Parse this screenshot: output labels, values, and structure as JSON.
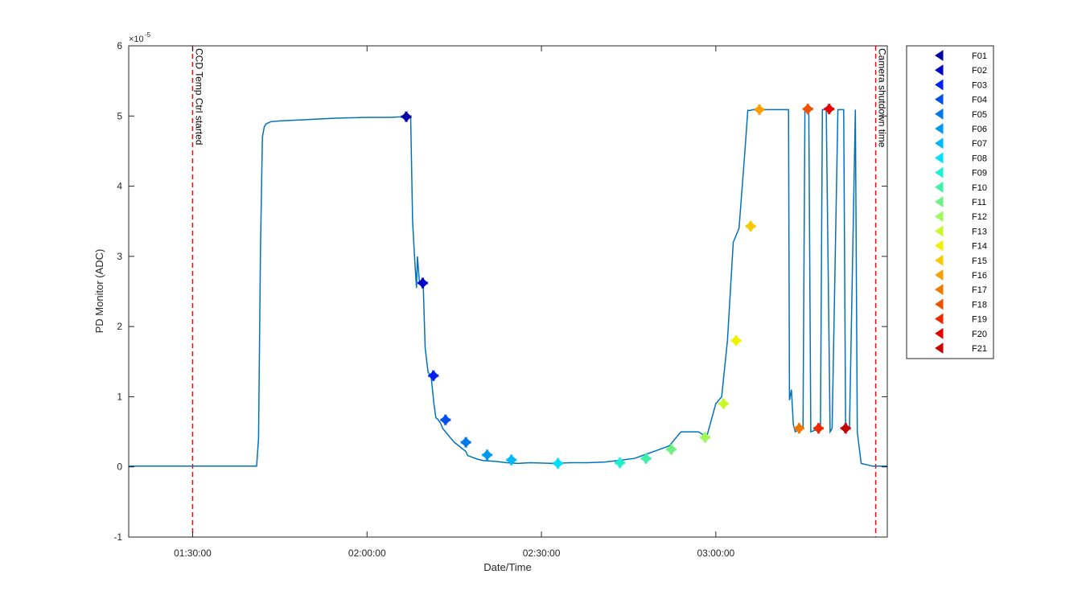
{
  "chart_data": {
    "type": "line",
    "xlabel": "Date/Time",
    "ylabel": "PD Monitor (ADC)",
    "y_exponent_label": "×10",
    "y_exponent_power": "-5",
    "xlim": [
      "01:19:00",
      "03:29:30"
    ],
    "ylim": [
      -1,
      6
    ],
    "x_ticks": [
      "01:30:00",
      "02:00:00",
      "02:30:00",
      "03:00:00"
    ],
    "y_ticks": [
      -1,
      0,
      1,
      2,
      3,
      4,
      5,
      6
    ],
    "grid": false,
    "legend_position": "outside-right",
    "line_color": "#0072bd",
    "series": [
      {
        "x": [
          "01:19:00",
          "01:41:00",
          "01:41:20",
          "01:41:40",
          "01:42:00",
          "01:42:20",
          "01:42:40",
          "01:43:30",
          "01:45:00",
          "01:50:00",
          "01:55:00",
          "02:00:00",
          "02:04:00",
          "02:06:00",
          "02:07:30",
          "02:07:50",
          "02:08:10",
          "02:08:30",
          "02:08:40",
          "02:09:00",
          "02:09:40",
          "02:10:00",
          "02:10:30",
          "02:11:00",
          "02:11:30",
          "02:11:50",
          "02:12:10",
          "02:12:40",
          "02:13:00",
          "02:15:00",
          "02:15:20",
          "02:17:00",
          "02:17:20",
          "02:19:00",
          "02:20:00",
          "02:22:00",
          "02:24:00",
          "02:26:00",
          "02:28:00",
          "02:32:00",
          "02:35:00",
          "02:38:00",
          "02:41:00",
          "02:44:00",
          "02:46:00",
          "02:48:00",
          "02:50:00",
          "02:52:00",
          "02:54:00",
          "02:55:00",
          "02:57:00",
          "02:58:00",
          "02:58:20",
          "02:59:00",
          "03:00:00",
          "03:01:00",
          "03:02:00",
          "03:02:30",
          "03:03:00",
          "03:04:00",
          "03:05:00",
          "03:05:30",
          "03:06:00",
          "03:06:20",
          "03:06:40",
          "03:07:00",
          "03:12:30",
          "03:12:40",
          "03:13:00",
          "03:13:20",
          "03:13:40",
          "03:14:00",
          "03:15:00",
          "03:15:20",
          "03:16:00",
          "03:16:20",
          "03:17:00",
          "03:18:00",
          "03:18:20",
          "03:19:00",
          "03:19:40",
          "03:20:00",
          "03:21:00",
          "03:22:00",
          "03:22:20",
          "03:23:00",
          "03:24:00",
          "03:24:20",
          "03:25:00",
          "03:27:00",
          "03:29:30"
        ],
        "y": [
          0.01,
          0.01,
          0.4,
          3.1,
          4.7,
          4.85,
          4.89,
          4.92,
          4.93,
          4.95,
          4.97,
          4.98,
          4.98,
          4.99,
          4.99,
          3.5,
          3.0,
          2.55,
          3.0,
          2.65,
          2.6,
          1.7,
          1.35,
          1.3,
          0.9,
          0.7,
          0.68,
          0.62,
          0.55,
          0.35,
          0.33,
          0.22,
          0.16,
          0.11,
          0.09,
          0.08,
          0.06,
          0.05,
          0.06,
          0.05,
          0.06,
          0.06,
          0.07,
          0.1,
          0.12,
          0.18,
          0.24,
          0.3,
          0.5,
          0.5,
          0.5,
          0.45,
          0.4,
          0.6,
          0.9,
          1.0,
          1.8,
          2.5,
          3.2,
          3.4,
          4.5,
          5.08,
          5.08,
          5.09,
          5.09,
          5.09,
          5.09,
          0.95,
          1.1,
          0.6,
          0.5,
          0.52,
          0.55,
          5.09,
          5.09,
          0.5,
          0.52,
          0.55,
          5.09,
          5.09,
          0.5,
          0.55,
          5.09,
          5.09,
          0.5,
          0.55,
          5.09,
          0.5,
          0.05,
          0.01,
          0.01
        ]
      }
    ],
    "markers": [
      {
        "name": "F01",
        "x": "02:06:45",
        "y": 4.99,
        "color": "#0000aa"
      },
      {
        "name": "F02",
        "x": "02:09:35",
        "y": 2.62,
        "color": "#0000c8"
      },
      {
        "name": "F03",
        "x": "02:11:25",
        "y": 1.3,
        "color": "#0020f0"
      },
      {
        "name": "F04",
        "x": "02:13:30",
        "y": 0.67,
        "color": "#0050e8"
      },
      {
        "name": "F05",
        "x": "02:17:00",
        "y": 0.35,
        "color": "#0078e8"
      },
      {
        "name": "F06",
        "x": "02:20:40",
        "y": 0.17,
        "color": "#0098f0"
      },
      {
        "name": "F07",
        "x": "02:24:50",
        "y": 0.1,
        "color": "#00b8f8"
      },
      {
        "name": "F08",
        "x": "02:32:50",
        "y": 0.05,
        "color": "#00e0f8"
      },
      {
        "name": "F09",
        "x": "02:43:30",
        "y": 0.06,
        "color": "#20f0d0"
      },
      {
        "name": "F10",
        "x": "02:48:00",
        "y": 0.12,
        "color": "#40f0a8"
      },
      {
        "name": "F11",
        "x": "02:52:20",
        "y": 0.25,
        "color": "#70f080"
      },
      {
        "name": "F12",
        "x": "02:58:10",
        "y": 0.42,
        "color": "#a0f858"
      },
      {
        "name": "F13",
        "x": "03:01:20",
        "y": 0.9,
        "color": "#c8f828"
      },
      {
        "name": "F14",
        "x": "03:03:30",
        "y": 1.8,
        "color": "#f0f000"
      },
      {
        "name": "F15",
        "x": "03:06:00",
        "y": 3.43,
        "color": "#f8c800"
      },
      {
        "name": "F16",
        "x": "03:07:30",
        "y": 5.09,
        "color": "#f8a000"
      },
      {
        "name": "F17",
        "x": "03:14:20",
        "y": 0.55,
        "color": "#f07800"
      },
      {
        "name": "F18",
        "x": "03:15:50",
        "y": 5.1,
        "color": "#f05000"
      },
      {
        "name": "F19",
        "x": "03:17:40",
        "y": 0.55,
        "color": "#f02800"
      },
      {
        "name": "F20",
        "x": "03:19:30",
        "y": 5.1,
        "color": "#e80000"
      },
      {
        "name": "F21",
        "x": "03:22:20",
        "y": 0.55,
        "color": "#c80000"
      }
    ],
    "vlines": [
      {
        "x": "01:30:00",
        "label": "CCD Temp Ctrl started",
        "color": "#ff0000"
      },
      {
        "x": "03:27:30",
        "label": "Camera shutdown time",
        "color": "#ff0000"
      }
    ]
  }
}
